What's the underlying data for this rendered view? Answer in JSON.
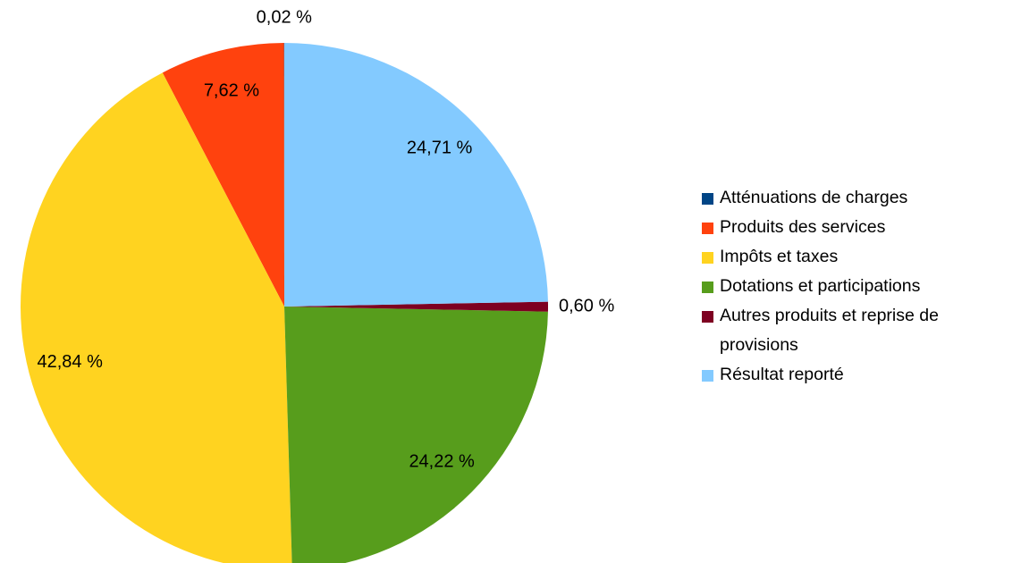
{
  "chart_data": {
    "type": "pie",
    "categories": [
      "Atténuations de charges",
      "Produits des services",
      "Impôts et taxes",
      "Dotations et participations",
      "Autres produits et reprise de provisions",
      "Résultat reporté"
    ],
    "values": [
      0.02,
      7.62,
      42.84,
      24.22,
      0.6,
      24.71
    ],
    "value_labels": [
      "0,02 %",
      "7,62 %",
      "42,84 %",
      "24,22 %",
      "0,60 %",
      "24,71 %"
    ],
    "colors": [
      "#004586",
      "#ff420e",
      "#ffd320",
      "#579d1c",
      "#7e0021",
      "#83caff"
    ],
    "direction": "counterclockwise",
    "legend": "right"
  }
}
